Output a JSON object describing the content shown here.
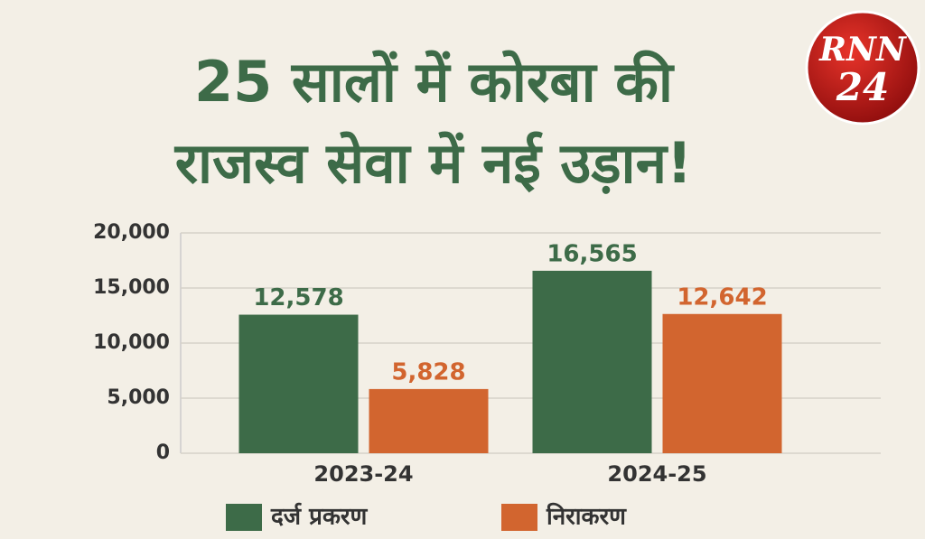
{
  "logo": [
    "RNN",
    "24"
  ],
  "chart_data": {
    "type": "bar",
    "title": [
      "25 सालों में कोरबा की",
      "राजस्व सेवा में नई उड़ान!"
    ],
    "categories": [
      "2023-24",
      "2024-25"
    ],
    "series": [
      {
        "name": "दर्ज प्रकरण",
        "color": "#3d6b48",
        "values": [
          12578,
          16565
        ],
        "value_labels": [
          "12,578",
          "16,565"
        ]
      },
      {
        "name": "निराकरण",
        "color": "#d2652f",
        "values": [
          5828,
          12642
        ],
        "value_labels": [
          "5,828",
          "12,642"
        ]
      }
    ],
    "ylim": [
      0,
      20000
    ],
    "yticks": [
      0,
      {
        "value": 5000,
        "label": "5,000"
      },
      {
        "value": 10000,
        "label": "10,000"
      },
      {
        "value": 15000,
        "label": "15,000"
      },
      {
        "value": 20000,
        "label": "20,000"
      }
    ],
    "grid": true
  }
}
